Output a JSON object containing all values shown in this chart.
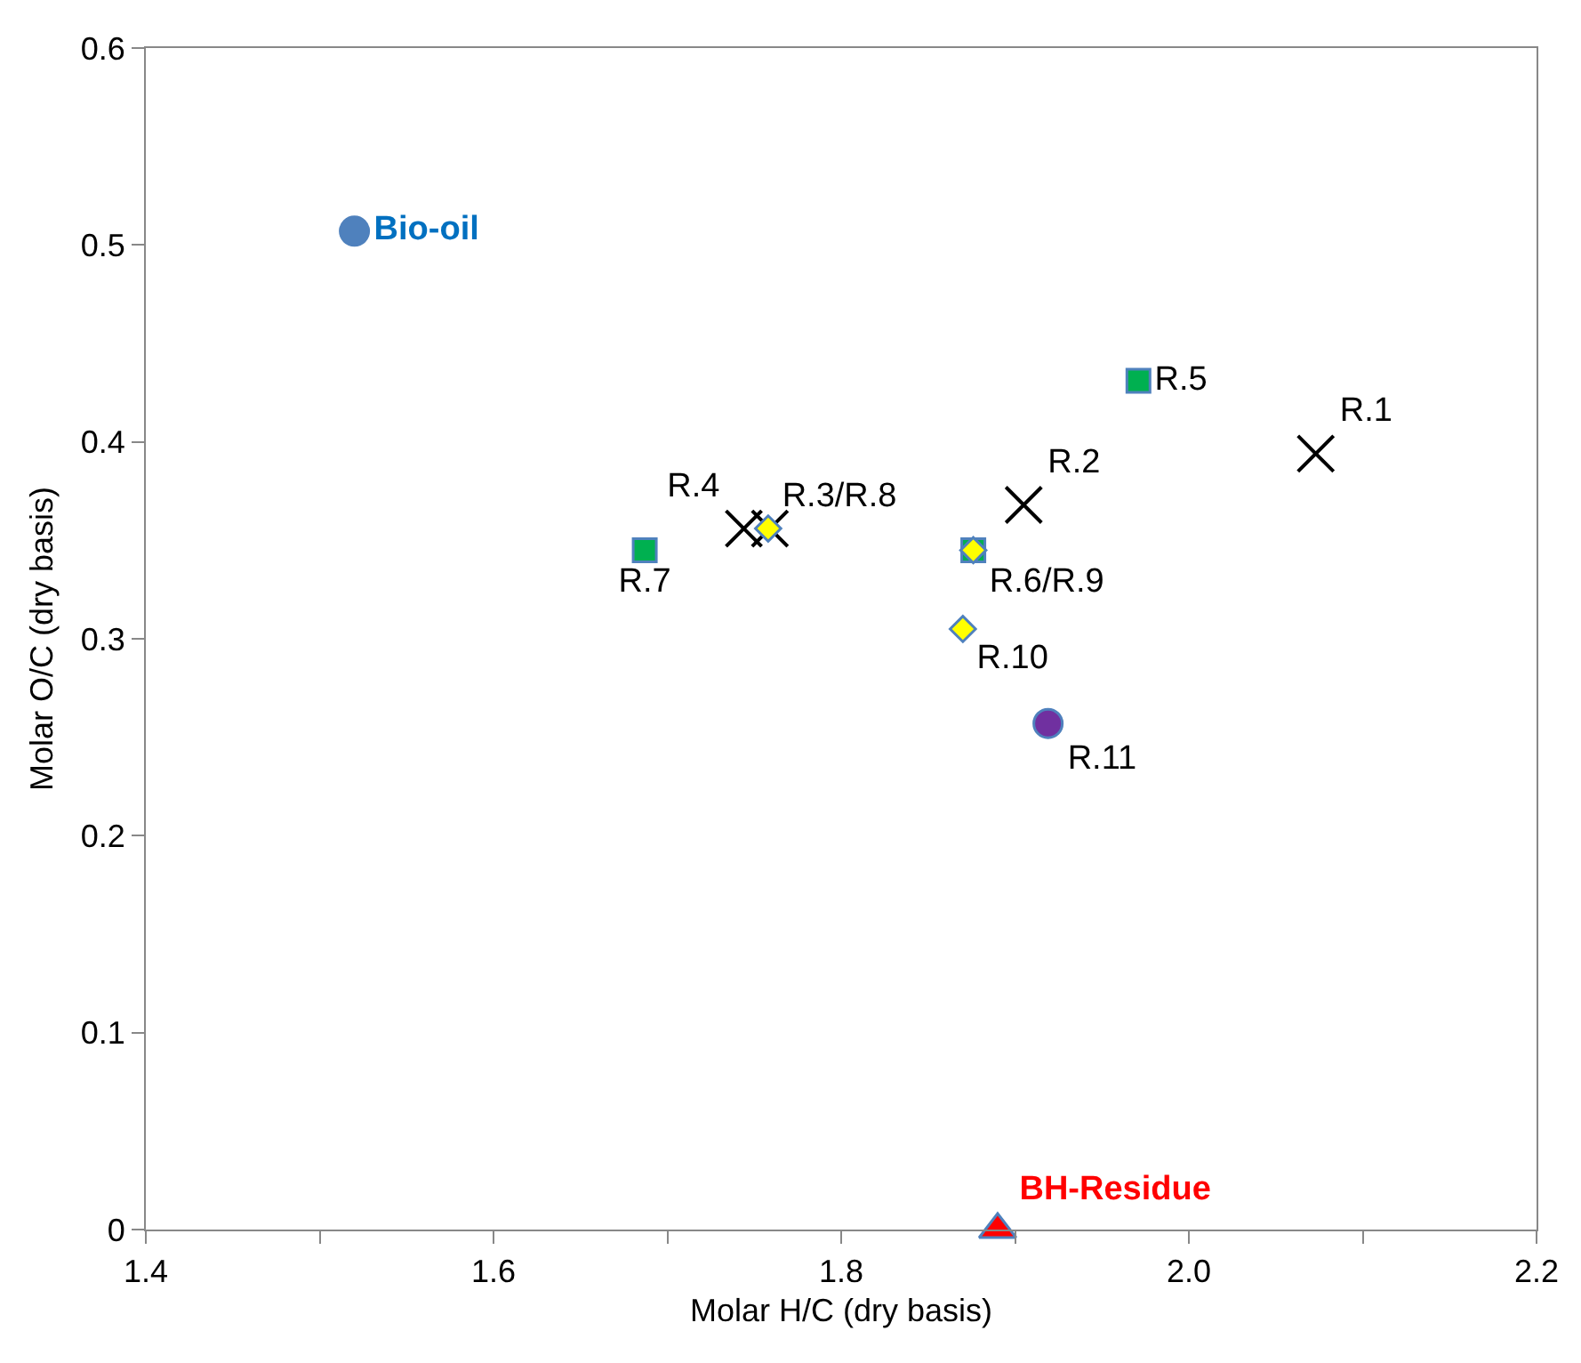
{
  "chart_data": {
    "type": "scatter",
    "xlabel": "Molar H/C (dry basis)",
    "ylabel": "Molar O/C (dry basis)",
    "xlim": [
      1.4,
      2.2
    ],
    "ylim": [
      0,
      0.6
    ],
    "xticks": [
      {
        "value": 1.4,
        "label": "1.4"
      },
      {
        "value": 1.5,
        "label": null
      },
      {
        "value": 1.6,
        "label": "1.6"
      },
      {
        "value": 1.7,
        "label": null
      },
      {
        "value": 1.8,
        "label": "1.8"
      },
      {
        "value": 1.9,
        "label": null
      },
      {
        "value": 2.0,
        "label": "2.0"
      },
      {
        "value": 2.1,
        "label": null
      },
      {
        "value": 2.2,
        "label": "2.2"
      }
    ],
    "yticks": [
      0,
      0.1,
      0.2,
      0.3,
      0.4,
      0.5,
      0.6
    ],
    "series": [
      {
        "marker": "circle",
        "color": "#4f81bd",
        "x": [
          1.52
        ],
        "values": [
          0.507
        ],
        "value_labels": [
          "Bio-oil"
        ]
      },
      {
        "marker": "triangle",
        "color": "#ff0000",
        "x": [
          1.89
        ],
        "values": [
          0
        ],
        "value_labels": [
          "BH-Residue"
        ]
      },
      {
        "marker": "cross",
        "color": "#000000",
        "x": [
          2.073,
          1.905,
          1.759,
          1.744
        ],
        "values": [
          0.394,
          0.368,
          0.356,
          0.356
        ],
        "value_labels": [
          "R.1",
          "R.2",
          null,
          "R.4"
        ]
      },
      {
        "marker": "square",
        "color": "#00b050",
        "x": [
          1.971,
          1.876,
          1.687
        ],
        "values": [
          0.431,
          0.345,
          0.345
        ],
        "value_labels": [
          "R.5",
          "R.6/R.9",
          "R.7"
        ]
      },
      {
        "marker": "diamond",
        "color": "#ffff00",
        "x": [
          1.758,
          1.876,
          1.87
        ],
        "values": [
          0.356,
          0.345,
          0.305
        ],
        "value_labels": [
          "R.3/R.8",
          null,
          "R.10"
        ]
      },
      {
        "marker": "circle",
        "color": "#7030a0",
        "x": [
          1.919
        ],
        "values": [
          0.257
        ],
        "value_labels": [
          "R.11"
        ]
      }
    ]
  }
}
